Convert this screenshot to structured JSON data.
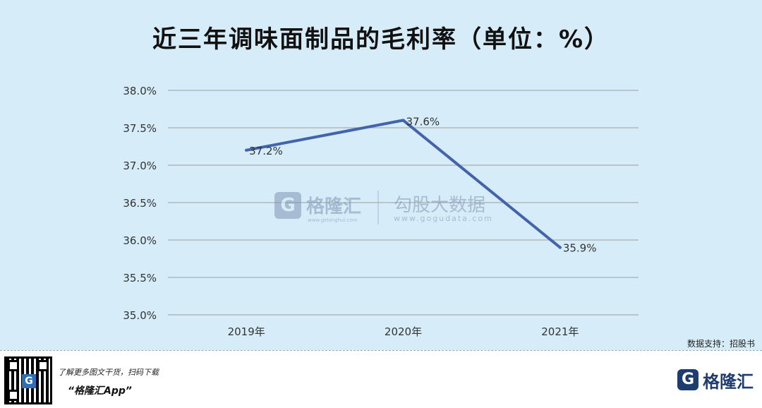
{
  "title": "近三年调味面制品的毛利率（单位：%）",
  "chart_data": {
    "type": "line",
    "categories": [
      "2019年",
      "2020年",
      "2021年"
    ],
    "series": [
      {
        "values": [
          37.2,
          37.6,
          35.9
        ],
        "labels": [
          "37.2%",
          "37.6%",
          "35.9%"
        ],
        "color": "#4363aa"
      }
    ],
    "ylim": [
      35.0,
      38.0
    ],
    "yticks": [
      "35.0%",
      "35.5%",
      "36.0%",
      "36.5%",
      "37.0%",
      "37.5%",
      "38.0%"
    ],
    "ytick_values": [
      35.0,
      35.5,
      36.0,
      36.5,
      37.0,
      37.5,
      38.0
    ],
    "grid": true,
    "legend": "none"
  },
  "watermark": {
    "brand": "格隆汇",
    "brand_url": "www.gelonghui.com",
    "data": "勾股大数据",
    "data_url": "www.gogudata.com"
  },
  "source": "数据支持：招股书",
  "footer": {
    "note": "了解更多图文干货，扫码下载",
    "app": "“格隆汇App”",
    "brand": "格隆汇",
    "brand_url": "www.gelonghui.com",
    "mark": "G"
  },
  "colors": {
    "panel": "#d6ecf9",
    "grid": "#a8acb0",
    "line": "#4363aa",
    "brand": "#1e3d6e"
  }
}
